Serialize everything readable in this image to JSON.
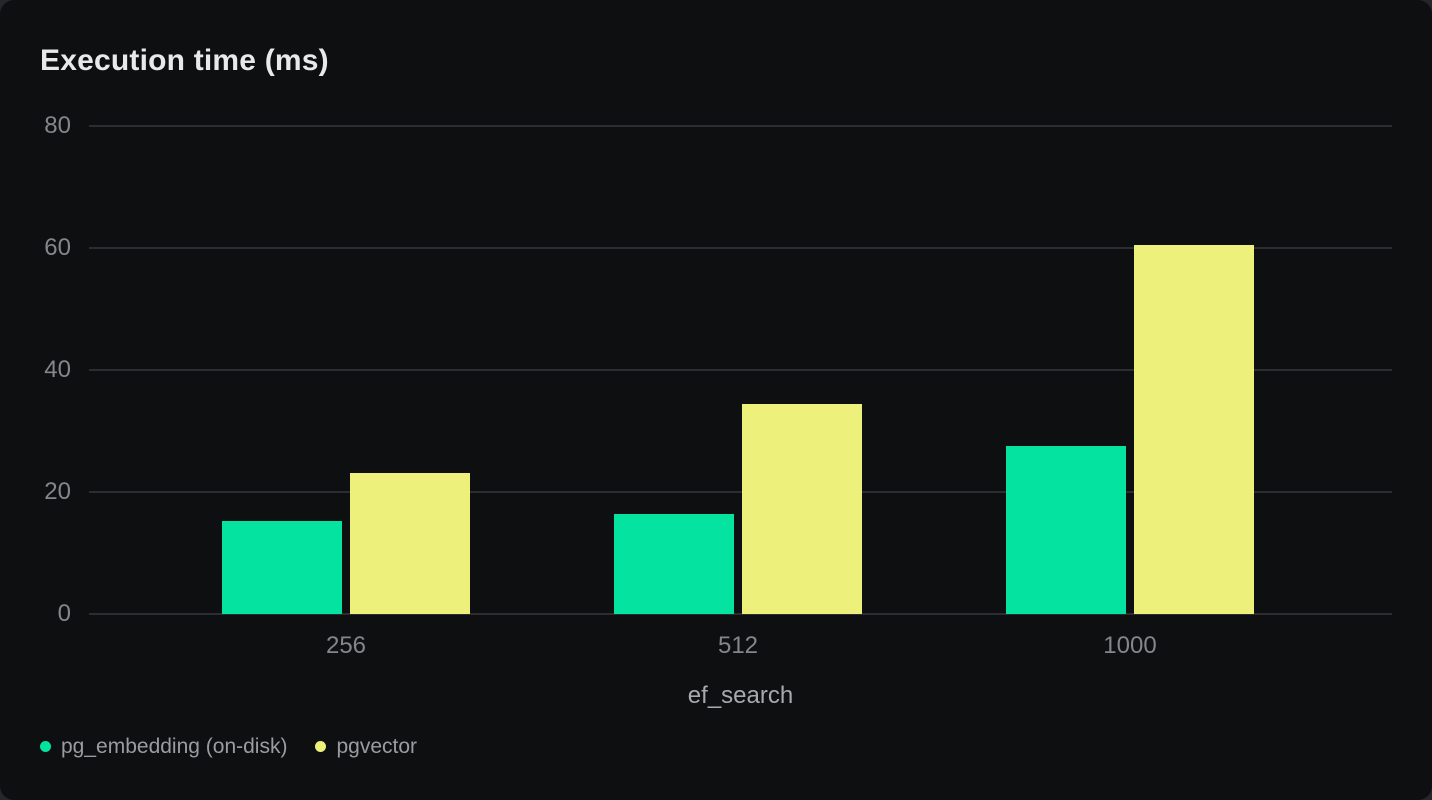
{
  "page": {
    "background": "#27272b",
    "card_background": "#0e0f10"
  },
  "chart_data": {
    "type": "bar",
    "title": "Execution time (ms)",
    "xlabel": "ef_search",
    "ylabel": "",
    "categories": [
      "256",
      "512",
      "1000"
    ],
    "series": [
      {
        "name": "pg_embedding (on-disk)",
        "color": "#05e3a0",
        "values": [
          15.2,
          16.4,
          27.6
        ]
      },
      {
        "name": "pgvector",
        "color": "#edf07a",
        "values": [
          23.1,
          34.5,
          60.5
        ]
      }
    ],
    "ylim": [
      0,
      80
    ],
    "yticks": [
      0,
      20,
      40,
      60,
      80
    ],
    "grid": true,
    "legend_position": "bottom-left",
    "colors": {
      "title": "#e9e9ea",
      "tick_label": "#85858b",
      "axis_label": "#a8a8ae",
      "legend_label": "#9b9ba1",
      "gridline": "#2d2d31"
    }
  }
}
